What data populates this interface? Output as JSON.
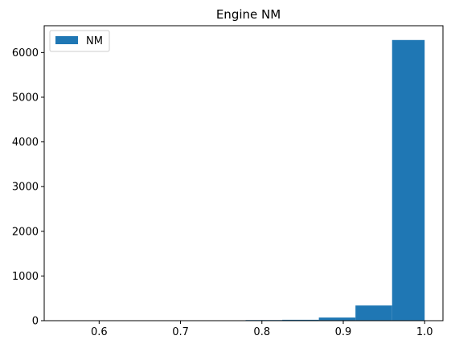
{
  "chart_data": {
    "type": "bar",
    "title": "Engine NM",
    "xlabel": "",
    "ylabel": "",
    "xlim": [
      0.5325,
      1.0225
    ],
    "ylim": [
      0,
      6600
    ],
    "x_ticks": [
      0.6,
      0.7,
      0.8,
      0.9,
      1.0
    ],
    "x_tick_labels": [
      "0.6",
      "0.7",
      "0.8",
      "0.9",
      "1.0"
    ],
    "y_ticks": [
      0,
      1000,
      2000,
      3000,
      4000,
      5000,
      6000
    ],
    "y_tick_labels": [
      "0",
      "1000",
      "2000",
      "3000",
      "4000",
      "5000",
      "6000"
    ],
    "grid": false,
    "legend_position": "top-left",
    "series": [
      {
        "name": "NM",
        "color": "#1f77b4",
        "bin_edges": [
          0.555,
          0.6,
          0.645,
          0.69,
          0.735,
          0.78,
          0.825,
          0.87,
          0.915,
          0.96,
          1.0
        ],
        "values": [
          1,
          2,
          1,
          3,
          6,
          14,
          20,
          70,
          340,
          6280
        ]
      }
    ]
  }
}
